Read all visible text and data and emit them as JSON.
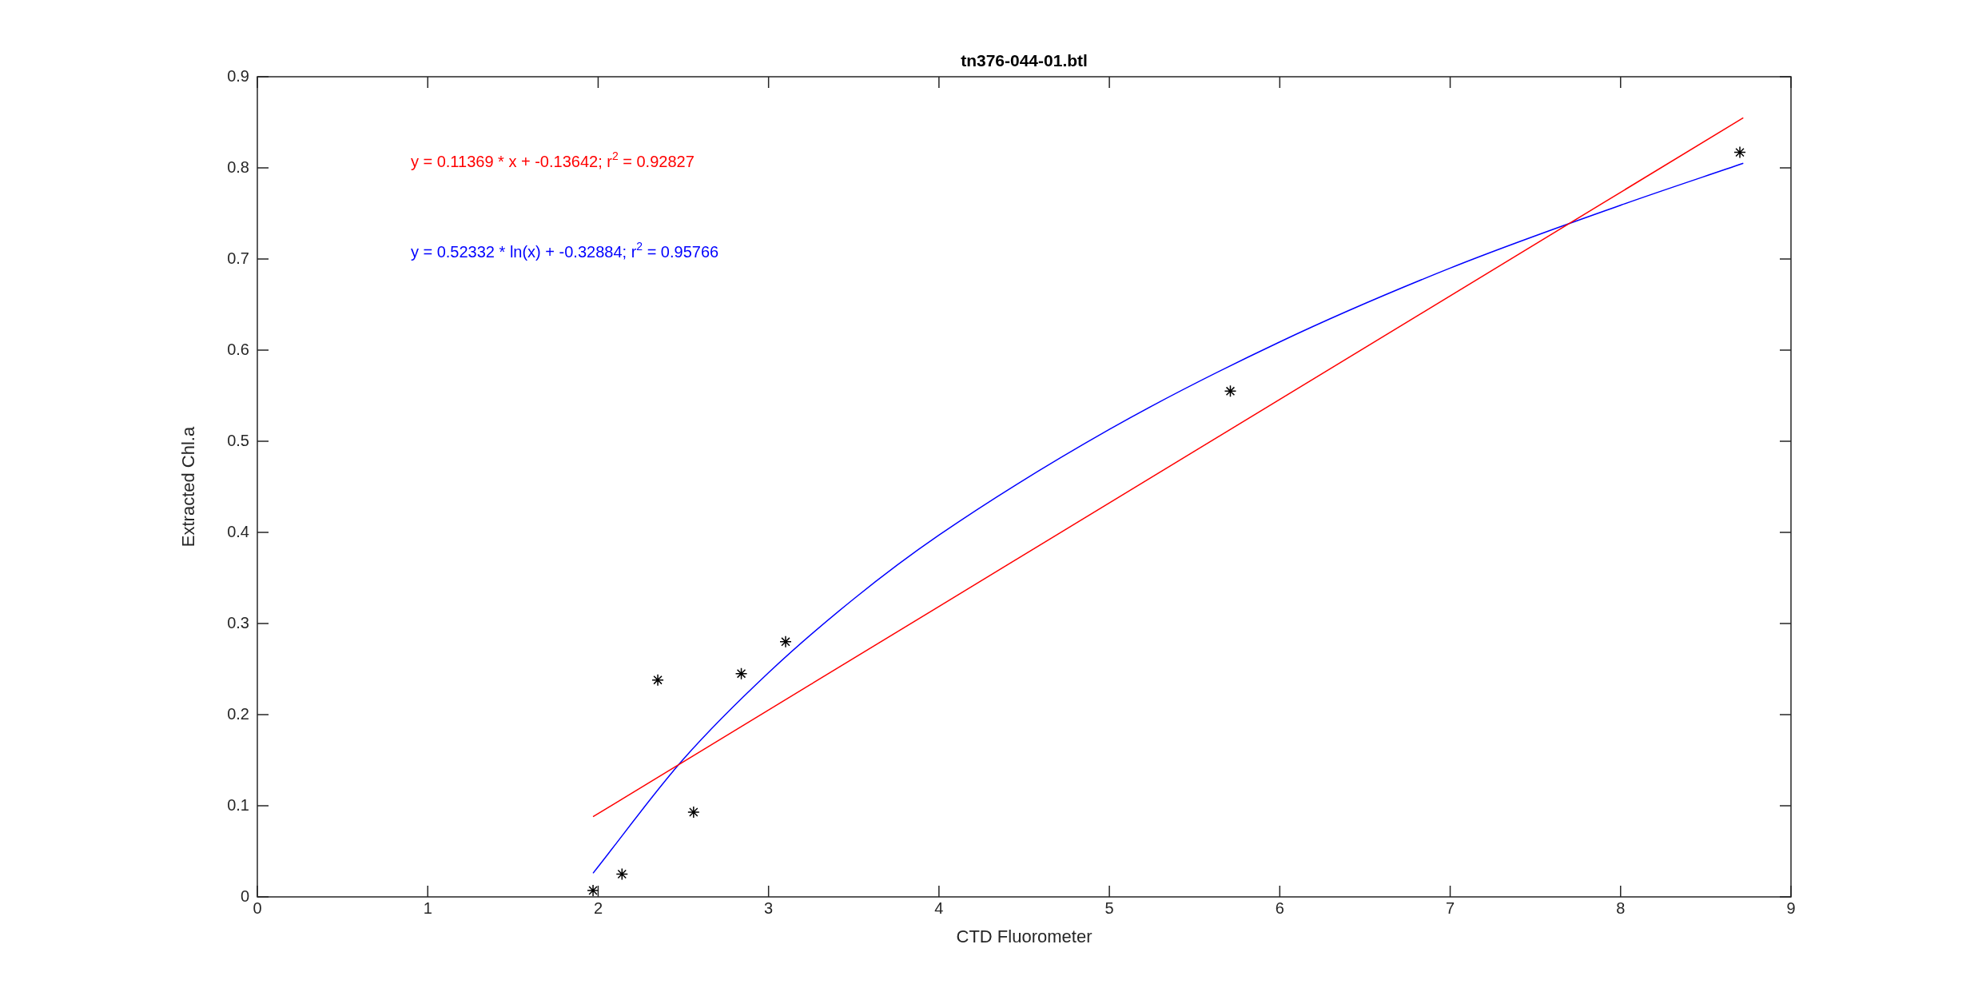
{
  "chart_data": {
    "type": "scatter",
    "title": "tn376-044-01.btl",
    "xlabel": "CTD Fluorometer",
    "ylabel": "Extracted Chl.a",
    "xlim": [
      0,
      9
    ],
    "xticks": [
      0,
      1,
      2,
      3,
      4,
      5,
      6,
      7,
      8,
      9
    ],
    "ylim": [
      0,
      0.9
    ],
    "yticks": [
      0,
      0.1,
      0.2,
      0.3,
      0.4,
      0.5,
      0.6,
      0.7,
      0.8,
      0.9
    ],
    "grid": false,
    "legend": false,
    "series": [
      {
        "type": "scatter",
        "color": "#000000",
        "marker": "cross",
        "x": [
          1.97,
          2.14,
          2.35,
          2.56,
          2.84,
          3.1,
          5.71,
          8.7
        ],
        "values": [
          0.007,
          0.025,
          0.238,
          0.093,
          0.245,
          0.28,
          0.555,
          0.817
        ]
      },
      {
        "type": "line",
        "color": "#ff0000",
        "x": [
          1.97,
          8.72
        ],
        "values": [
          0.088,
          0.855
        ]
      },
      {
        "type": "line",
        "color": "#0000ff",
        "x": [
          1.97,
          2.5,
          3,
          3.5,
          4,
          5,
          6,
          7,
          8,
          8.72
        ],
        "values": [
          0.026,
          0.151,
          0.246,
          0.327,
          0.397,
          0.513,
          0.609,
          0.69,
          0.759,
          0.805
        ]
      }
    ],
    "annotations": [
      "y = 0.11369 * x + -0.13642; r$^{2}$ = 0.92827",
      "y = 0.52332 * ln(x) + -0.32884; r$^{2}$ = 0.95766"
    ]
  }
}
